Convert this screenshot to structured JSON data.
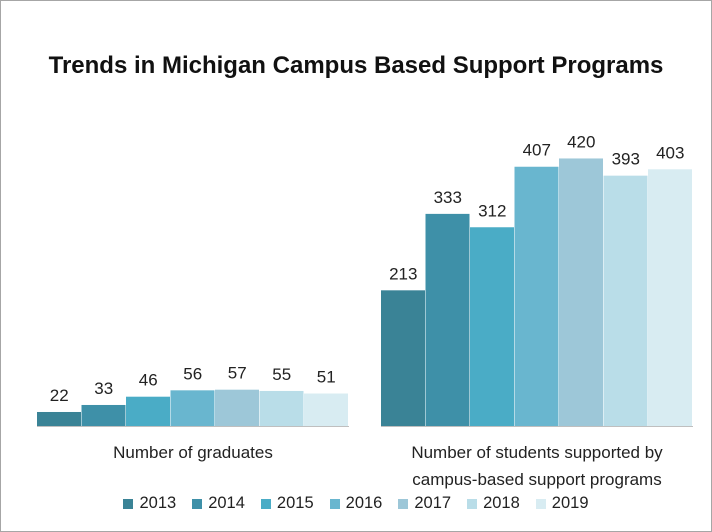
{
  "chart_data": {
    "type": "bar",
    "title": "Trends in Michigan Campus Based Support Programs",
    "categories": [
      "Number of graduates",
      "Number of students supported by campus-based support programs"
    ],
    "category_lines": [
      [
        "Number of graduates"
      ],
      [
        "Number of students supported by",
        "campus-based support programs"
      ]
    ],
    "series": [
      {
        "name": "2013",
        "color": "#3a8396",
        "values": [
          22,
          213
        ]
      },
      {
        "name": "2014",
        "color": "#3e90a8",
        "values": [
          33,
          333
        ]
      },
      {
        "name": "2015",
        "color": "#4aacc6",
        "values": [
          46,
          312
        ]
      },
      {
        "name": "2016",
        "color": "#69b6cf",
        "values": [
          56,
          407
        ]
      },
      {
        "name": "2017",
        "color": "#9dc7d8",
        "values": [
          57,
          420
        ]
      },
      {
        "name": "2018",
        "color": "#b9dde8",
        "values": [
          55,
          393
        ]
      },
      {
        "name": "2019",
        "color": "#d8ecf2",
        "values": [
          51,
          403
        ]
      }
    ],
    "data_labels": true,
    "legend_position": "bottom",
    "grid": false,
    "ylim": [
      0,
      420
    ]
  }
}
